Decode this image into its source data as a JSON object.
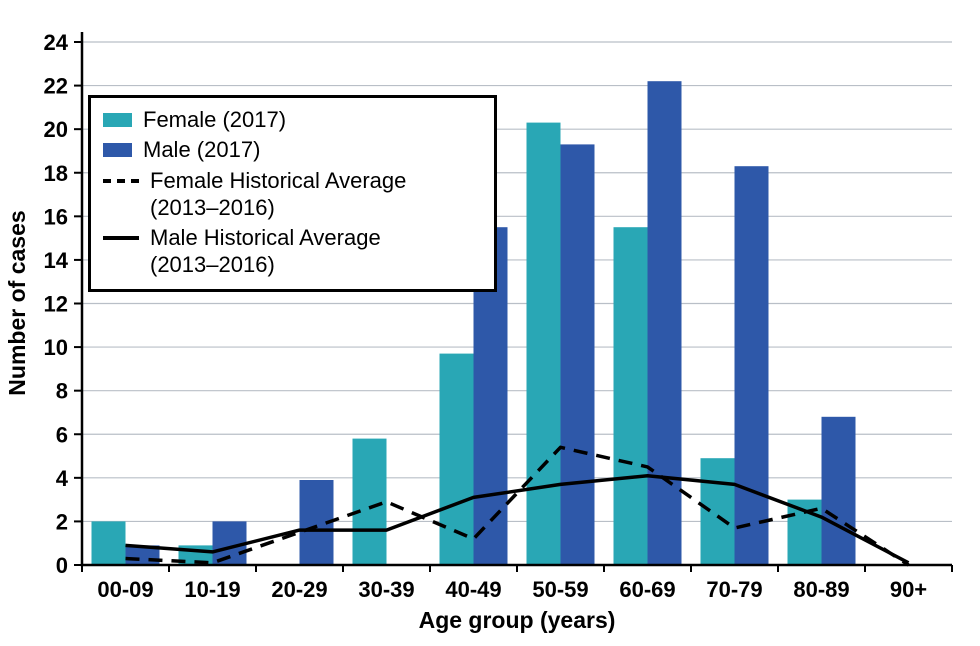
{
  "chart_data": {
    "type": "bar+line",
    "title": "",
    "xlabel": "Age group (years)",
    "ylabel": "Number of cases",
    "categories": [
      "00-09",
      "10-19",
      "20-29",
      "30-39",
      "40-49",
      "50-59",
      "60-69",
      "70-79",
      "80-89",
      "90+"
    ],
    "ylim": [
      0,
      24
    ],
    "ytick_interval": 2,
    "grid": true,
    "legend_position": "top-left",
    "colors": {
      "female_bar": "#29a7b5",
      "male_bar": "#2e58a9",
      "line": "#000000",
      "gridline": "#b9bfc7",
      "axis": "#000000"
    },
    "series": [
      {
        "name": "Female (2017)",
        "kind": "bar",
        "color": "#29a7b5",
        "values": [
          2,
          0.9,
          0,
          5.8,
          9.7,
          20.3,
          15.5,
          4.9,
          3,
          0
        ]
      },
      {
        "name": "Male (2017)",
        "kind": "bar",
        "color": "#2e58a9",
        "values": [
          0.9,
          2,
          3.9,
          0,
          15.5,
          19.3,
          22.2,
          18.3,
          6.8,
          0
        ]
      },
      {
        "name": "Female Historical Average (2013–2016)",
        "kind": "line",
        "dashed": true,
        "color": "#000000",
        "values": [
          0.3,
          0.1,
          1.5,
          2.9,
          1.2,
          5.4,
          4.5,
          1.7,
          2.6,
          0
        ]
      },
      {
        "name": "Male Historical Average (2013–2016)",
        "kind": "line",
        "dashed": false,
        "color": "#000000",
        "values": [
          0.9,
          0.6,
          1.6,
          1.6,
          3.1,
          3.7,
          4.1,
          3.7,
          2.2,
          0.1
        ]
      }
    ],
    "legend": [
      {
        "label": "Female (2017)",
        "label2": ""
      },
      {
        "label": "Male (2017)",
        "label2": ""
      },
      {
        "label": "Female Historical Average",
        "label2": "(2013–2016)"
      },
      {
        "label": "Male Historical Average",
        "label2": "(2013–2016)"
      }
    ]
  }
}
